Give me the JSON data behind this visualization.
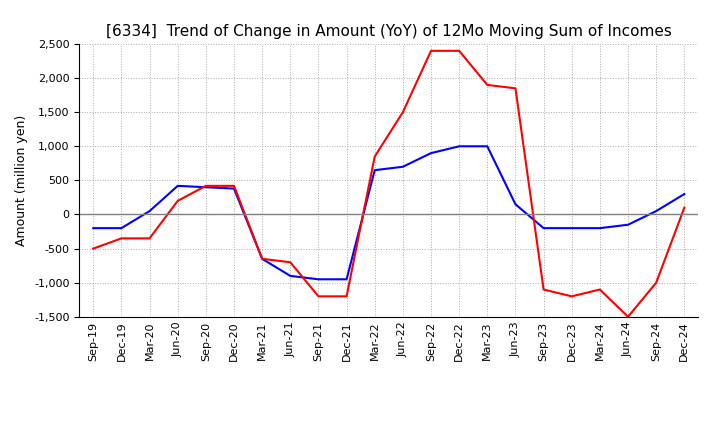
{
  "title": "[6334]  Trend of Change in Amount (YoY) of 12Mo Moving Sum of Incomes",
  "ylabel": "Amount (million yen)",
  "ylim": [
    -1500,
    2500
  ],
  "yticks": [
    -1500,
    -1000,
    -500,
    0,
    500,
    1000,
    1500,
    2000,
    2500
  ],
  "x_labels": [
    "Sep-19",
    "Dec-19",
    "Mar-20",
    "Jun-20",
    "Sep-20",
    "Dec-20",
    "Mar-21",
    "Jun-21",
    "Sep-21",
    "Dec-21",
    "Mar-22",
    "Jun-22",
    "Sep-22",
    "Dec-22",
    "Mar-23",
    "Jun-23",
    "Sep-23",
    "Dec-23",
    "Mar-24",
    "Jun-24",
    "Sep-24",
    "Dec-24"
  ],
  "ordinary_income": [
    -200,
    -200,
    50,
    420,
    400,
    380,
    -650,
    -900,
    -950,
    -950,
    650,
    700,
    900,
    1000,
    1000,
    150,
    -200,
    -200,
    -200,
    -150,
    50,
    300
  ],
  "net_income": [
    -500,
    -350,
    -350,
    200,
    420,
    420,
    -650,
    -700,
    -1200,
    -1200,
    850,
    1500,
    2400,
    2400,
    1900,
    1850,
    -1100,
    -1200,
    -1100,
    -1500,
    -1000,
    100
  ],
  "ordinary_color": "#0000ff",
  "net_color": "#ff0000",
  "line_width": 1.5,
  "background_color": "#ffffff",
  "title_fontsize": 11,
  "label_fontsize": 9,
  "tick_fontsize": 8
}
